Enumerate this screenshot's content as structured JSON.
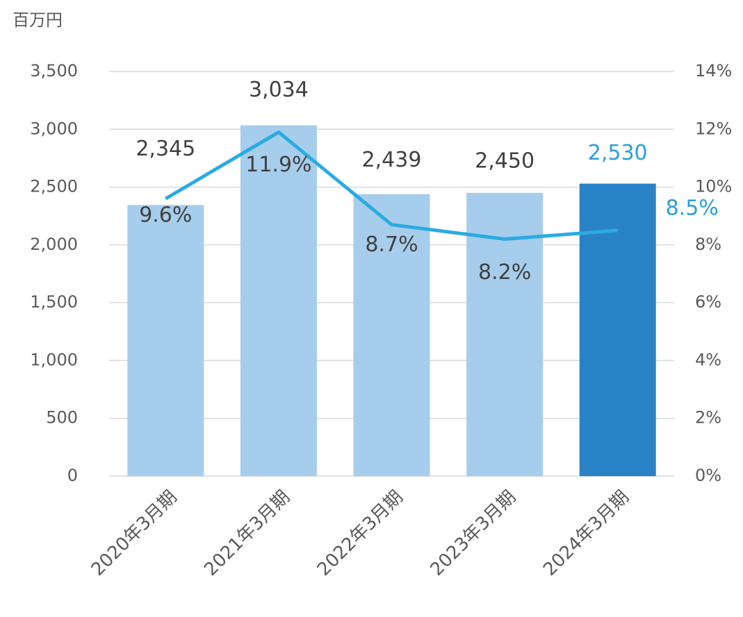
{
  "chart_data": {
    "type": "bar",
    "unit_label": "百万円",
    "categories": [
      "2020年3月期",
      "2021年3月期",
      "2022年3月期",
      "2023年3月期",
      "2024年3月期"
    ],
    "series": [
      {
        "type": "bar",
        "colors": [
          "#a6cdec",
          "#a6cdec",
          "#a6cdec",
          "#a6cdec",
          "#2a82c6"
        ],
        "label_colors": [
          "#404040",
          "#404040",
          "#404040",
          "#404040",
          "#2a9fd8"
        ],
        "values": [
          2345,
          3034,
          2439,
          2450,
          2530
        ],
        "value_labels": [
          "2,345",
          "3,034",
          "2,439",
          "2,450",
          "2,530"
        ]
      },
      {
        "type": "line",
        "axis": "y2",
        "color": "#2aabe2",
        "label_colors": [
          "#404040",
          "#404040",
          "#404040",
          "#404040",
          "#2a9fd8"
        ],
        "values": [
          9.6,
          11.9,
          8.7,
          8.2,
          8.5
        ],
        "value_labels": [
          "9.6%",
          "11.9%",
          "8.7%",
          "8.2%",
          "8.5%"
        ]
      }
    ],
    "ylim": [
      0,
      3500
    ],
    "yticks": [
      0,
      500,
      {
        "value": 1000,
        "label": "1,000"
      },
      {
        "value": 1500,
        "label": "1,500"
      },
      {
        "value": 2000,
        "label": "2,000"
      },
      {
        "value": 2500,
        "label": "2,500"
      },
      {
        "value": 3000,
        "label": "3,000"
      },
      {
        "value": 3500,
        "label": "3,500"
      }
    ],
    "y2lim": [
      0,
      14
    ],
    "y2ticks": [
      {
        "value": 0,
        "label": "0%"
      },
      {
        "value": 2,
        "label": "2%"
      },
      {
        "value": 4,
        "label": "4%"
      },
      {
        "value": 6,
        "label": "6%"
      },
      {
        "value": 8,
        "label": "8%"
      },
      {
        "value": 10,
        "label": "10%"
      },
      {
        "value": 12,
        "label": "12%"
      },
      {
        "value": 14,
        "label": "14%"
      }
    ],
    "grid": true
  }
}
